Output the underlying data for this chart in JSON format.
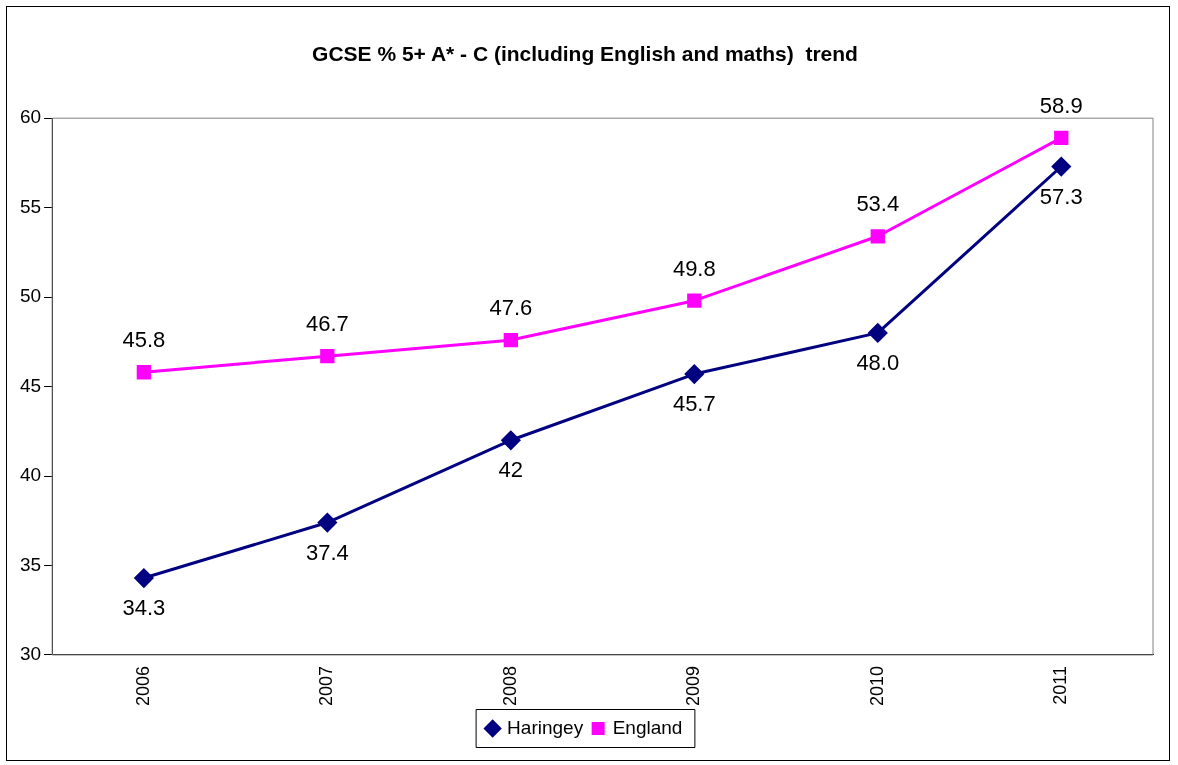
{
  "chart_data": {
    "type": "line",
    "title": "GCSE % 5+ A* - C (including English and maths)  trend",
    "categories": [
      "2006",
      "2007",
      "2008",
      "2009",
      "2010",
      "2011"
    ],
    "series": [
      {
        "name": "Haringey",
        "color": "#000080",
        "marker": "diamond",
        "values": [
          34.3,
          37.4,
          42,
          45.7,
          48.0,
          57.3
        ],
        "value_labels": [
          "34.3",
          "37.4",
          "42",
          "45.7",
          "48.0",
          "57.3"
        ]
      },
      {
        "name": "England",
        "color": "#ff00ff",
        "marker": "square",
        "values": [
          45.8,
          46.7,
          47.6,
          49.8,
          53.4,
          58.9
        ],
        "value_labels": [
          "45.8",
          "46.7",
          "47.6",
          "49.8",
          "53.4",
          "58.9"
        ]
      }
    ],
    "ylim": [
      30,
      60
    ],
    "yticks": [
      30,
      35,
      40,
      45,
      50,
      55,
      60
    ],
    "grid": false,
    "legend": "bottom",
    "line_style": "solid"
  }
}
